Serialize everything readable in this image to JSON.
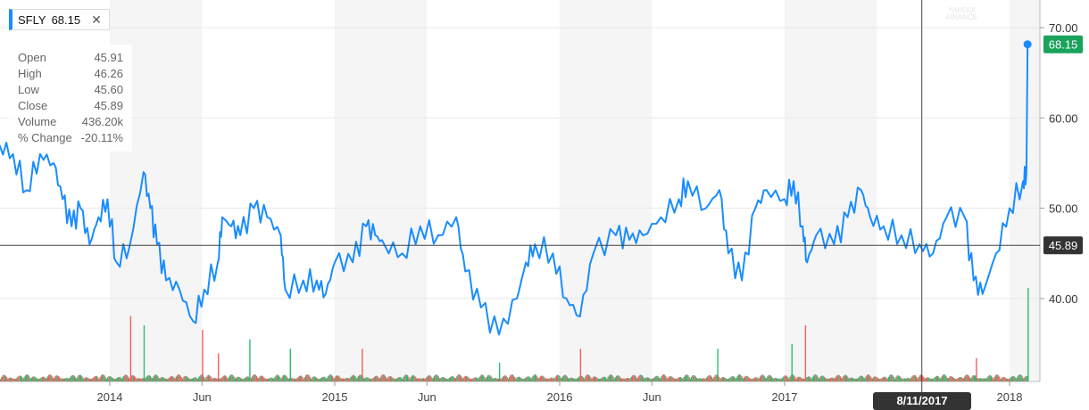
{
  "ticker": {
    "symbol": "SFLY",
    "price": "68.15",
    "close_icon": "✕"
  },
  "ohlc": [
    {
      "label": "Open",
      "value": "45.91"
    },
    {
      "label": "High",
      "value": "46.26"
    },
    {
      "label": "Low",
      "value": "45.60"
    },
    {
      "label": "Close",
      "value": "45.89"
    },
    {
      "label": "Volume",
      "value": "436.20k"
    },
    {
      "label": "% Change",
      "value": "-20.11%"
    }
  ],
  "crosshair": {
    "date": "8/11/2017",
    "t": 2017.61,
    "price": "45.89",
    "price_value": 45.89
  },
  "watermark": {
    "line1": "YAHOO!",
    "line2": "FINANCE"
  },
  "colors": {
    "line": "#1a8cff",
    "up": "#2dbb75",
    "down": "#f25f5f",
    "last": "#1aa35a",
    "shade": "#f5f5f5"
  },
  "chart_data": {
    "type": "line",
    "title": "SFLY",
    "ylim": [
      30,
      72
    ],
    "yticks": [
      {
        "v": 40,
        "label": "40.00"
      },
      {
        "v": 50,
        "label": "50.00"
      },
      {
        "v": 60,
        "label": "60.00"
      },
      {
        "v": 70,
        "label": "70.00"
      }
    ],
    "xticks": [
      {
        "t": 2014,
        "label": "2014"
      },
      {
        "t": 2014.41,
        "label": "Jun"
      },
      {
        "t": 2015,
        "label": "2015"
      },
      {
        "t": 2015.41,
        "label": "Jun"
      },
      {
        "t": 2016,
        "label": "2016"
      },
      {
        "t": 2016.41,
        "label": "Jun"
      },
      {
        "t": 2017,
        "label": "2017"
      },
      {
        "t": 2018,
        "label": "2018"
      }
    ],
    "last": {
      "t": 2018.08,
      "value": 68.15,
      "label": "68.15"
    },
    "series": [
      {
        "name": "SFLY Close",
        "points": [
          [
            2013.51,
            57
          ],
          [
            2013.57,
            56
          ],
          [
            2013.63,
            52
          ],
          [
            2013.69,
            56
          ],
          [
            2013.75,
            55
          ],
          [
            2013.79,
            51
          ],
          [
            2013.83,
            48
          ],
          [
            2013.87,
            50
          ],
          [
            2013.91,
            46
          ],
          [
            2013.95,
            49
          ],
          [
            2013.99,
            51
          ],
          [
            2014.03,
            44
          ],
          [
            2014.09,
            46
          ],
          [
            2014.15,
            54
          ],
          [
            2014.18,
            50
          ],
          [
            2014.21,
            46
          ],
          [
            2014.25,
            42
          ],
          [
            2014.31,
            41
          ],
          [
            2014.37,
            37.5
          ],
          [
            2014.42,
            41
          ],
          [
            2014.48,
            44
          ],
          [
            2014.5,
            49
          ],
          [
            2014.54,
            48
          ],
          [
            2014.58,
            47
          ],
          [
            2014.64,
            50
          ],
          [
            2014.7,
            49
          ],
          [
            2014.76,
            47
          ],
          [
            2014.78,
            41
          ],
          [
            2014.86,
            42
          ],
          [
            2014.92,
            42
          ],
          [
            2014.96,
            40.5
          ],
          [
            2015.0,
            44
          ],
          [
            2015.08,
            44
          ],
          [
            2015.14,
            48
          ],
          [
            2015.18,
            47
          ],
          [
            2015.22,
            46
          ],
          [
            2015.3,
            45
          ],
          [
            2015.38,
            48
          ],
          [
            2015.46,
            47
          ],
          [
            2015.54,
            49
          ],
          [
            2015.58,
            43
          ],
          [
            2015.65,
            39
          ],
          [
            2015.73,
            36
          ],
          [
            2015.81,
            40
          ],
          [
            2015.85,
            44
          ],
          [
            2015.89,
            46
          ],
          [
            2015.97,
            45
          ],
          [
            2016.03,
            40
          ],
          [
            2016.09,
            38
          ],
          [
            2016.15,
            45
          ],
          [
            2016.25,
            47
          ],
          [
            2016.31,
            46.5
          ],
          [
            2016.37,
            47
          ],
          [
            2016.45,
            49
          ],
          [
            2016.53,
            51
          ],
          [
            2016.57,
            53
          ],
          [
            2016.65,
            50
          ],
          [
            2016.71,
            52
          ],
          [
            2016.75,
            45
          ],
          [
            2016.81,
            42
          ],
          [
            2016.87,
            50
          ],
          [
            2016.92,
            52
          ],
          [
            2017.0,
            51
          ],
          [
            2017.04,
            53
          ],
          [
            2017.08,
            48
          ],
          [
            2017.1,
            44
          ],
          [
            2017.14,
            47
          ],
          [
            2017.22,
            46
          ],
          [
            2017.28,
            49
          ],
          [
            2017.34,
            52
          ],
          [
            2017.38,
            49
          ],
          [
            2017.44,
            48
          ],
          [
            2017.52,
            47
          ],
          [
            2017.6,
            46
          ],
          [
            2017.66,
            45
          ],
          [
            2017.72,
            49
          ],
          [
            2017.8,
            49
          ],
          [
            2017.84,
            42
          ],
          [
            2017.88,
            40.5
          ],
          [
            2017.94,
            45
          ],
          [
            2018.0,
            50
          ],
          [
            2018.06,
            53
          ],
          [
            2018.075,
            54
          ],
          [
            2018.08,
            68.15
          ]
        ]
      }
    ],
    "volume_spikes": [
      [
        2014.09,
        0.7
      ],
      [
        2014.15,
        0.6
      ],
      [
        2014.41,
        0.55
      ],
      [
        2014.62,
        0.45
      ],
      [
        2014.48,
        0.3
      ],
      [
        2014.8,
        0.35
      ],
      [
        2015.12,
        0.35
      ],
      [
        2015.73,
        0.2
      ],
      [
        2016.09,
        0.35
      ],
      [
        2016.7,
        0.35
      ],
      [
        2017.09,
        0.6
      ],
      [
        2017.03,
        0.4
      ],
      [
        2017.85,
        0.25
      ],
      [
        2018.08,
        1.0
      ]
    ]
  }
}
